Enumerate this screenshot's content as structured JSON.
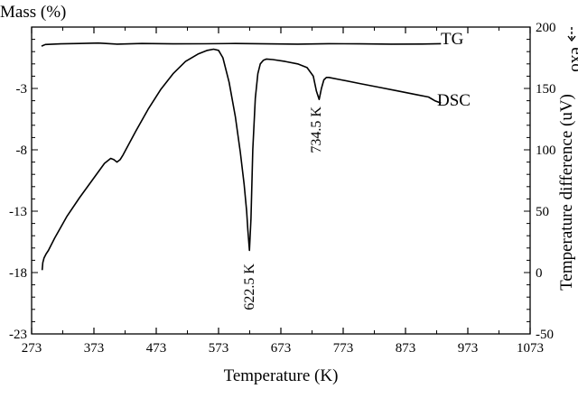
{
  "chart_data": {
    "type": "line",
    "xlabel": "Temperature (K)",
    "ylabel_left": "Mass (%)",
    "ylabel_right": "Temperature difference (uV)",
    "exo_label": "exo",
    "exo_arrow": "- - >",
    "xlim": [
      273,
      1073
    ],
    "ylim_left": [
      -23,
      2
    ],
    "ylim_right": [
      -50,
      200
    ],
    "x_ticks": [
      "273",
      "373",
      "473",
      "573",
      "673",
      "773",
      "873",
      "973",
      "1073"
    ],
    "y_left_ticks": [
      "-23",
      "-18",
      "-13",
      "-8",
      "-3"
    ],
    "y_right_ticks": [
      "-50",
      "0",
      "50",
      "100",
      "150",
      "200"
    ],
    "grid": false,
    "series": [
      {
        "name": "TG",
        "axis": "right",
        "x": [
          289,
          295,
          320,
          350,
          380,
          410,
          450,
          500,
          550,
          600,
          650,
          700,
          750,
          800,
          850,
          900,
          930
        ],
        "y": [
          184.5,
          185.8,
          186.3,
          186.6,
          187.0,
          186.1,
          186.6,
          186.3,
          186.4,
          186.6,
          186.3,
          186.1,
          186.5,
          186.3,
          186.1,
          186.2,
          186.5
        ]
      },
      {
        "name": "DSC",
        "axis": "right",
        "x": [
          290,
          291,
          293,
          296,
          300,
          310,
          330,
          350,
          370,
          390,
          400,
          405,
          410,
          415,
          420,
          440,
          460,
          480,
          500,
          520,
          540,
          555,
          565,
          573,
          580,
          590,
          600,
          608,
          614,
          618,
          620,
          622.5,
          625,
          628,
          632,
          636,
          640,
          645,
          650,
          660,
          680,
          700,
          715,
          725,
          730,
          734.5,
          738,
          742,
          746,
          750,
          770,
          800,
          830,
          860,
          890,
          910,
          920,
          930
        ],
        "y": [
          2,
          8,
          12,
          15,
          18,
          28,
          46,
          61,
          75,
          89,
          93,
          92,
          90,
          92,
          96,
          115,
          133,
          149,
          162,
          172,
          178,
          181,
          182,
          181,
          175,
          155,
          127,
          98,
          72,
          50,
          35,
          18,
          44,
          100,
          142,
          162,
          170,
          173,
          174,
          173.5,
          172,
          170,
          167,
          160,
          148,
          141,
          150,
          157,
          159,
          159,
          157,
          154,
          151,
          148,
          145,
          143,
          140,
          138
        ]
      }
    ],
    "annotations": [
      "622.5 K",
      "734.5 K"
    ]
  }
}
